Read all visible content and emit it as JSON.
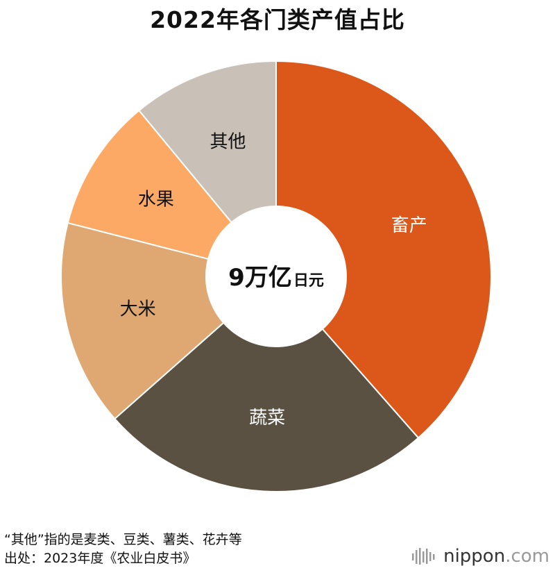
{
  "chart_data": {
    "type": "pie",
    "title": "2022年各门类产值占比",
    "center_label": {
      "value": "9万亿",
      "unit": "日元"
    },
    "slices": [
      {
        "label": "畜产",
        "value": 38.5,
        "color": "#DC581A",
        "label_color": "#FFFFFF"
      },
      {
        "label": "蔬菜",
        "value": 25.0,
        "color": "#5B5142",
        "label_color": "#FFFFFF"
      },
      {
        "label": "大米",
        "value": 15.5,
        "color": "#DFA873",
        "label_color": "#111111"
      },
      {
        "label": "水果",
        "value": 10.0,
        "color": "#FDA966",
        "label_color": "#111111"
      },
      {
        "label": "其他",
        "value": 11.0,
        "color": "#C9C0B8",
        "label_color": "#111111"
      }
    ]
  },
  "footnotes": [
    "“其他”指的是麦类、豆类、薯类、花卉等",
    "出处：2023年度《农业白皮书》"
  ],
  "brand": {
    "name": "nippon",
    "suffix": ".com"
  }
}
